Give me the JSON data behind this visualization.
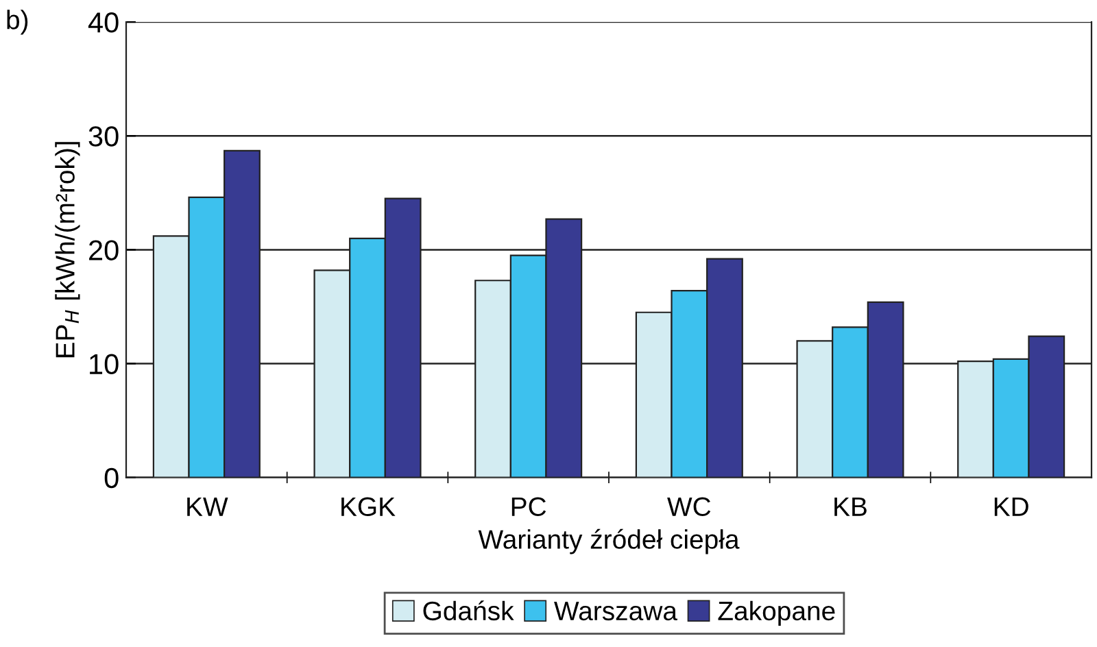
{
  "chart_data": {
    "type": "bar",
    "xlabel": "Warianty źródeł ciepła",
    "ylabel": "EP$_{H}$ [kWh/(m²rok)]",
    "categories": [
      "KW",
      "KGK",
      "PC",
      "WC",
      "KB",
      "KD"
    ],
    "series": [
      {
        "name": "Gdańsk",
        "color": "#d3ecf2",
        "values": [
          21.2,
          18.2,
          17.3,
          14.5,
          12.0,
          10.2
        ]
      },
      {
        "name": "Warszawa",
        "color": "#3dc1ee",
        "values": [
          24.6,
          21.0,
          19.5,
          16.4,
          13.2,
          10.4
        ]
      },
      {
        "name": "Zakopane",
        "color": "#383b92",
        "values": [
          28.7,
          24.5,
          22.7,
          19.2,
          15.4,
          12.4
        ]
      }
    ],
    "ylim": [
      0,
      40
    ],
    "yticks": [
      0,
      10,
      20,
      30,
      40
    ],
    "grid": "y",
    "legend": "bottom",
    "annotations": [
      "b)"
    ]
  }
}
